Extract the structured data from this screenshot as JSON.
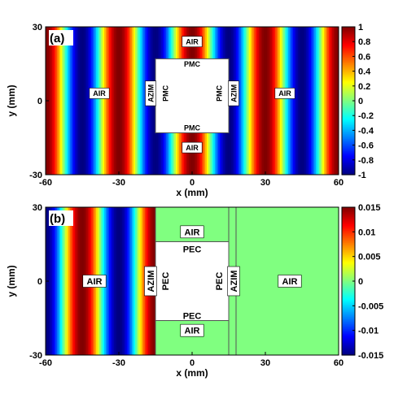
{
  "chart_data": [
    {
      "type": "heatmap",
      "panel_label": "(a)",
      "xlabel": "x (mm)",
      "ylabel": "y (mm)",
      "xlim": [
        -60,
        60
      ],
      "ylim": [
        -30,
        30
      ],
      "xticks": [
        -60,
        -30,
        0,
        30,
        60
      ],
      "yticks": [
        -30,
        0,
        30
      ],
      "colorbar": {
        "range": [
          -1,
          1
        ],
        "ticks": [
          "1",
          "0.8",
          "0.6",
          "0.4",
          "0.2",
          "0",
          "-0.2",
          "-0.4",
          "-0.6",
          "-0.8",
          "-1"
        ],
        "colormap": "jet"
      },
      "field": {
        "pattern": "cos(2*pi*x/30)",
        "period_mm": 30,
        "amplitude": 1
      },
      "regions": [
        {
          "label": "AIR",
          "x": -38,
          "y": 3
        },
        {
          "label": "AIR",
          "x": 38,
          "y": 3
        },
        {
          "label": "AIR",
          "x": 0,
          "y": 24
        },
        {
          "label": "AIR",
          "x": 0,
          "y": -19
        },
        {
          "label": "AZIM",
          "x": -17,
          "y": 3,
          "vertical": true
        },
        {
          "label": "AZIM",
          "x": 17,
          "y": 3,
          "vertical": true
        },
        {
          "label": "PMC",
          "x": 0,
          "y": 15
        },
        {
          "label": "PMC",
          "x": 0,
          "y": -11
        },
        {
          "label": "PMC",
          "x": -11,
          "y": 3,
          "vertical": true
        },
        {
          "label": "PMC",
          "x": 11,
          "y": 3,
          "vertical": true
        }
      ],
      "cloak_box": {
        "x": [
          -15,
          15
        ],
        "y": [
          -13,
          17
        ],
        "fill": "#ffffff"
      }
    },
    {
      "type": "heatmap",
      "panel_label": "(b)",
      "xlabel": "x (mm)",
      "ylabel": "y (mm)",
      "xlim": [
        -60,
        60
      ],
      "ylim": [
        -30,
        30
      ],
      "xticks": [
        -60,
        -30,
        0,
        30,
        60
      ],
      "yticks": [
        -30,
        0,
        30
      ],
      "colorbar": {
        "range": [
          -0.015,
          0.015
        ],
        "ticks": [
          "0.015",
          "0.01",
          "0.005",
          "0",
          "-0.005",
          "-0.01",
          "-0.015"
        ],
        "colormap": "jet"
      },
      "field": {
        "pattern": "-cos(2*pi*x/30)",
        "period_mm": 30,
        "amplitude": 0.015,
        "x_end": -15
      },
      "background_value": 0.0,
      "regions": [
        {
          "label": "AIR",
          "x": -40,
          "y": 0
        },
        {
          "label": "AIR",
          "x": 40,
          "y": 0
        },
        {
          "label": "AIR",
          "x": 0,
          "y": 20
        },
        {
          "label": "AIR",
          "x": 0,
          "y": -20
        },
        {
          "label": "AZIM",
          "x": -17,
          "y": 0,
          "vertical": true
        },
        {
          "label": "AZIM",
          "x": 17,
          "y": 0,
          "vertical": true
        },
        {
          "label": "PEC",
          "x": 0,
          "y": 13
        },
        {
          "label": "PEC",
          "x": 0,
          "y": -14
        },
        {
          "label": "PEC",
          "x": -11,
          "y": 0,
          "vertical": true
        },
        {
          "label": "PEC",
          "x": 11,
          "y": 0,
          "vertical": true
        }
      ],
      "cloak_box": {
        "x": [
          -15,
          15
        ],
        "y": [
          -16,
          16
        ],
        "fill": "#ffffff"
      },
      "boundaries_x": [
        -15,
        15,
        18
      ],
      "boundaries_y": [
        16,
        -16
      ]
    }
  ]
}
